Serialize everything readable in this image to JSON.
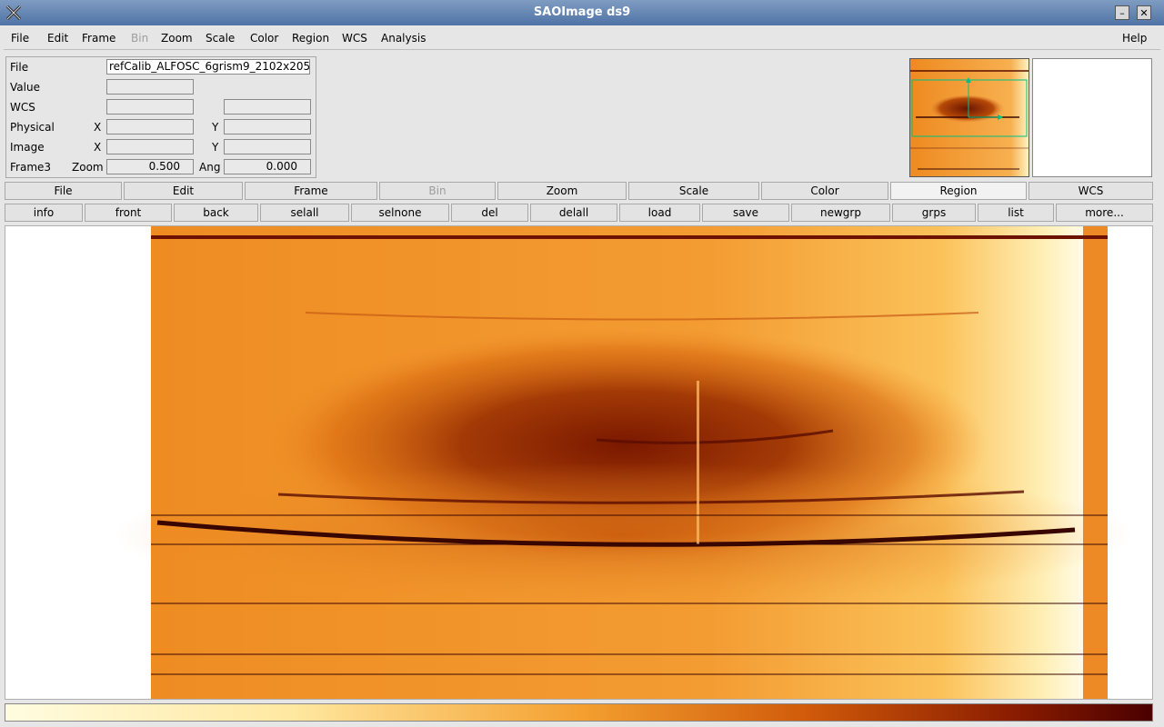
{
  "window": {
    "title": "SAOImage ds9",
    "minimize": "–",
    "close": "✕"
  },
  "menubar": {
    "items": [
      {
        "label": "File",
        "disabled": false
      },
      {
        "label": "Edit",
        "disabled": false
      },
      {
        "label": "Frame",
        "disabled": false
      },
      {
        "label": "Bin",
        "disabled": true
      },
      {
        "label": "Zoom",
        "disabled": false
      },
      {
        "label": "Scale",
        "disabled": false
      },
      {
        "label": "Color",
        "disabled": false
      },
      {
        "label": "Region",
        "disabled": false
      },
      {
        "label": "WCS",
        "disabled": false
      },
      {
        "label": "Analysis",
        "disabled": false
      }
    ],
    "help": "Help"
  },
  "info": {
    "file_label": "File",
    "file_value": "refCalib_ALFOSC_6grism9_2102x205",
    "value_label": "Value",
    "value_value": "",
    "wcs_label": "WCS",
    "wcs_value1": "",
    "wcs_value2": "",
    "physical_label": "Physical",
    "physical_x_label": "X",
    "physical_x": "",
    "physical_y_label": "Y",
    "physical_y": "",
    "image_label": "Image",
    "image_x_label": "X",
    "image_x": "",
    "image_y_label": "Y",
    "image_y": "",
    "frame_label": "Frame3",
    "zoom_label": "Zoom",
    "zoom_value": "0.500",
    "ang_label": "Ang",
    "ang_value": "0.000"
  },
  "buttonbar_main": [
    {
      "label": "File",
      "disabled": false,
      "active": false
    },
    {
      "label": "Edit",
      "disabled": false,
      "active": false
    },
    {
      "label": "Frame",
      "disabled": false,
      "active": false
    },
    {
      "label": "Bin",
      "disabled": true,
      "active": false
    },
    {
      "label": "Zoom",
      "disabled": false,
      "active": false
    },
    {
      "label": "Scale",
      "disabled": false,
      "active": false
    },
    {
      "label": "Color",
      "disabled": false,
      "active": false
    },
    {
      "label": "Region",
      "disabled": false,
      "active": true
    },
    {
      "label": "WCS",
      "disabled": false,
      "active": false
    }
  ],
  "buttonbar_region": [
    {
      "label": "info"
    },
    {
      "label": "front"
    },
    {
      "label": "back"
    },
    {
      "label": "selall"
    },
    {
      "label": "selnone"
    },
    {
      "label": "del"
    },
    {
      "label": "delall"
    },
    {
      "label": "load"
    },
    {
      "label": "save"
    },
    {
      "label": "newgrp"
    },
    {
      "label": "grps"
    },
    {
      "label": "list"
    },
    {
      "label": "more..."
    }
  ],
  "colors": {
    "titlebar": "#5b7daf",
    "image_base": "#f39a2e",
    "image_dark": "#7a1a00",
    "panner_region": "#00c080"
  }
}
